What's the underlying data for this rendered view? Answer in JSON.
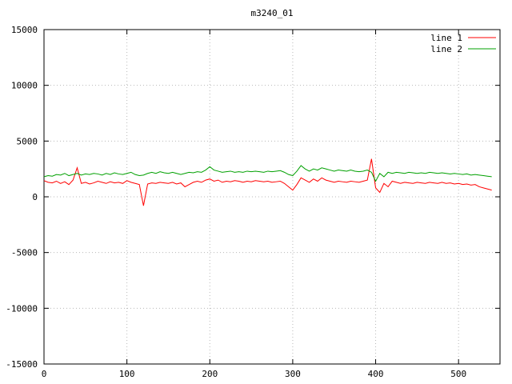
{
  "title": "m3240_01",
  "chart_data": {
    "type": "line",
    "title": "m3240_01",
    "xlabel": "",
    "ylabel": "",
    "xlim": [
      0,
      550
    ],
    "ylim": [
      -15000,
      15000
    ],
    "x_ticks": [
      0,
      100,
      200,
      300,
      400,
      500
    ],
    "y_ticks": [
      -15000,
      -10000,
      -5000,
      0,
      5000,
      10000,
      15000
    ],
    "grid": true,
    "legend_position": "top-right",
    "colors": {
      "line1": "#ff0000",
      "line2": "#00a000",
      "grid": "#b8b8b8",
      "border": "#000000",
      "background": "#ffffff"
    },
    "x": [
      0,
      5,
      10,
      15,
      20,
      25,
      30,
      35,
      40,
      45,
      50,
      55,
      60,
      65,
      70,
      75,
      80,
      85,
      90,
      95,
      100,
      105,
      110,
      115,
      120,
      125,
      130,
      135,
      140,
      145,
      150,
      155,
      160,
      165,
      170,
      175,
      180,
      185,
      190,
      195,
      200,
      205,
      210,
      215,
      220,
      225,
      230,
      235,
      240,
      245,
      250,
      255,
      260,
      265,
      270,
      275,
      280,
      285,
      290,
      295,
      300,
      305,
      310,
      315,
      320,
      325,
      330,
      335,
      340,
      345,
      350,
      355,
      360,
      365,
      370,
      375,
      380,
      385,
      390,
      395,
      400,
      405,
      410,
      415,
      420,
      425,
      430,
      435,
      440,
      445,
      450,
      455,
      460,
      465,
      470,
      475,
      480,
      485,
      490,
      495,
      500,
      505,
      510,
      515,
      520,
      525,
      530,
      535,
      540
    ],
    "series": [
      {
        "name": "line 1",
        "color": "#ff0000",
        "values": [
          1450,
          1300,
          1250,
          1400,
          1200,
          1350,
          1100,
          1500,
          2600,
          1200,
          1300,
          1150,
          1250,
          1400,
          1300,
          1200,
          1350,
          1250,
          1300,
          1200,
          1450,
          1300,
          1200,
          1100,
          -800,
          1150,
          1250,
          1200,
          1300,
          1250,
          1200,
          1300,
          1150,
          1250,
          900,
          1100,
          1300,
          1400,
          1300,
          1500,
          1600,
          1400,
          1500,
          1300,
          1400,
          1350,
          1450,
          1400,
          1300,
          1400,
          1350,
          1450,
          1400,
          1350,
          1400,
          1300,
          1350,
          1400,
          1200,
          900,
          600,
          1100,
          1700,
          1500,
          1300,
          1600,
          1400,
          1700,
          1500,
          1400,
          1300,
          1400,
          1350,
          1300,
          1400,
          1350,
          1300,
          1400,
          1500,
          3400,
          800,
          400,
          1200,
          900,
          1400,
          1300,
          1200,
          1300,
          1250,
          1200,
          1300,
          1250,
          1200,
          1300,
          1250,
          1200,
          1300,
          1200,
          1250,
          1150,
          1200,
          1100,
          1150,
          1050,
          1100,
          900,
          800,
          700,
          600
        ]
      },
      {
        "name": "line 2",
        "color": "#00a000",
        "values": [
          1800,
          1900,
          1850,
          2000,
          1950,
          2100,
          1900,
          2000,
          2100,
          1950,
          2050,
          2000,
          2100,
          2050,
          1950,
          2100,
          2000,
          2150,
          2050,
          2000,
          2100,
          2200,
          2000,
          1900,
          1950,
          2100,
          2200,
          2100,
          2250,
          2150,
          2100,
          2200,
          2100,
          2000,
          2100,
          2200,
          2150,
          2250,
          2200,
          2400,
          2700,
          2400,
          2300,
          2200,
          2250,
          2300,
          2200,
          2250,
          2200,
          2300,
          2250,
          2300,
          2250,
          2200,
          2300,
          2250,
          2300,
          2350,
          2200,
          2000,
          1900,
          2300,
          2800,
          2500,
          2300,
          2500,
          2400,
          2600,
          2500,
          2400,
          2300,
          2400,
          2350,
          2300,
          2400,
          2300,
          2250,
          2300,
          2400,
          2200,
          1400,
          2100,
          1800,
          2200,
          2100,
          2200,
          2150,
          2100,
          2200,
          2150,
          2100,
          2150,
          2100,
          2200,
          2150,
          2100,
          2150,
          2100,
          2050,
          2100,
          2050,
          2000,
          2050,
          1950,
          2000,
          1950,
          1900,
          1850,
          1800
        ]
      }
    ]
  }
}
